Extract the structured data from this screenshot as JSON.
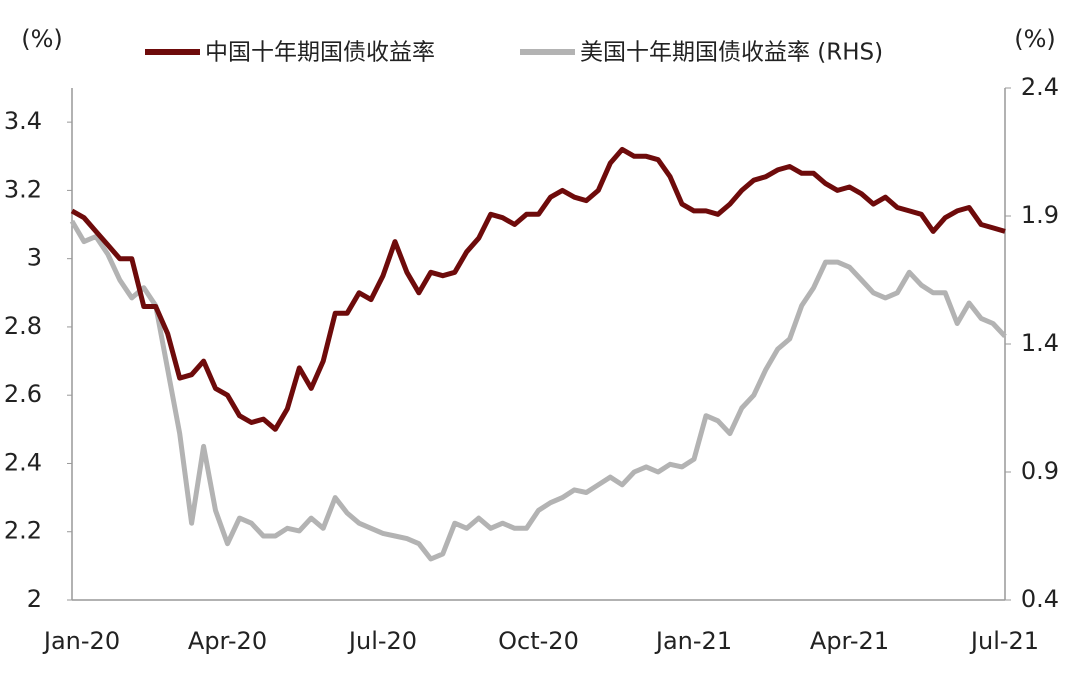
{
  "chart_data": {
    "type": "line",
    "y_label": "(%)",
    "y2_label": "(%)",
    "categories": [
      "Jan-20",
      null,
      null,
      null,
      null,
      null,
      null,
      null,
      null,
      null,
      null,
      null,
      null,
      "Apr-20",
      null,
      null,
      null,
      null,
      null,
      null,
      null,
      null,
      null,
      null,
      null,
      null,
      "Jul-20",
      null,
      null,
      null,
      null,
      null,
      null,
      null,
      null,
      null,
      null,
      null,
      null,
      "Oct-20",
      null,
      null,
      null,
      null,
      null,
      null,
      null,
      null,
      null,
      null,
      null,
      null,
      "Jan-21",
      null,
      null,
      null,
      null,
      null,
      null,
      null,
      null,
      null,
      null,
      null,
      null,
      "Apr-21",
      null,
      null,
      null,
      null,
      null,
      null,
      null,
      null,
      null,
      null,
      null,
      null,
      "Jul-21"
    ],
    "series": [
      {
        "name": "中国十年期国债收益率",
        "color": "#6e0b0b",
        "axis": "y",
        "values": [
          3.14,
          3.12,
          3.08,
          3.04,
          3.0,
          3.0,
          2.86,
          2.86,
          2.78,
          2.65,
          2.66,
          2.7,
          2.62,
          2.6,
          2.54,
          2.52,
          2.53,
          2.5,
          2.56,
          2.68,
          2.62,
          2.7,
          2.84,
          2.84,
          2.9,
          2.88,
          2.95,
          3.05,
          2.96,
          2.9,
          2.96,
          2.95,
          2.96,
          3.02,
          3.06,
          3.13,
          3.12,
          3.1,
          3.13,
          3.13,
          3.18,
          3.2,
          3.18,
          3.17,
          3.2,
          3.28,
          3.32,
          3.3,
          3.3,
          3.29,
          3.24,
          3.16,
          3.14,
          3.14,
          3.13,
          3.16,
          3.2,
          3.23,
          3.24,
          3.26,
          3.27,
          3.25,
          3.25,
          3.22,
          3.2,
          3.21,
          3.19,
          3.16,
          3.18,
          3.15,
          3.14,
          3.13,
          3.08,
          3.12,
          3.14,
          3.15,
          3.1,
          3.09,
          3.08
        ]
      },
      {
        "name": "美国十年期国债收益率 (RHS)",
        "color": "#b3b3b3",
        "axis": "y2",
        "values": [
          1.88,
          1.8,
          1.82,
          1.75,
          1.65,
          1.58,
          1.62,
          1.55,
          1.3,
          1.05,
          0.7,
          1.0,
          0.75,
          0.62,
          0.72,
          0.7,
          0.65,
          0.65,
          0.68,
          0.67,
          0.72,
          0.68,
          0.8,
          0.74,
          0.7,
          0.68,
          0.66,
          0.65,
          0.64,
          0.62,
          0.56,
          0.58,
          0.7,
          0.68,
          0.72,
          0.68,
          0.7,
          0.68,
          0.68,
          0.75,
          0.78,
          0.8,
          0.83,
          0.82,
          0.85,
          0.88,
          0.85,
          0.9,
          0.92,
          0.9,
          0.93,
          0.92,
          0.95,
          1.12,
          1.1,
          1.05,
          1.15,
          1.2,
          1.3,
          1.38,
          1.42,
          1.55,
          1.62,
          1.72,
          1.72,
          1.7,
          1.65,
          1.6,
          1.58,
          1.6,
          1.68,
          1.63,
          1.6,
          1.6,
          1.48,
          1.56,
          1.5,
          1.48,
          1.43
        ]
      }
    ],
    "ylim": [
      2,
      3.5
    ],
    "yticks": [
      2,
      2.2,
      2.4,
      2.6,
      2.8,
      3,
      3.2,
      3.4
    ],
    "y2lim": [
      0.4,
      2.4
    ],
    "y2ticks": [
      0.4,
      0.9,
      1.4,
      1.9,
      2.4
    ],
    "grid": false
  }
}
